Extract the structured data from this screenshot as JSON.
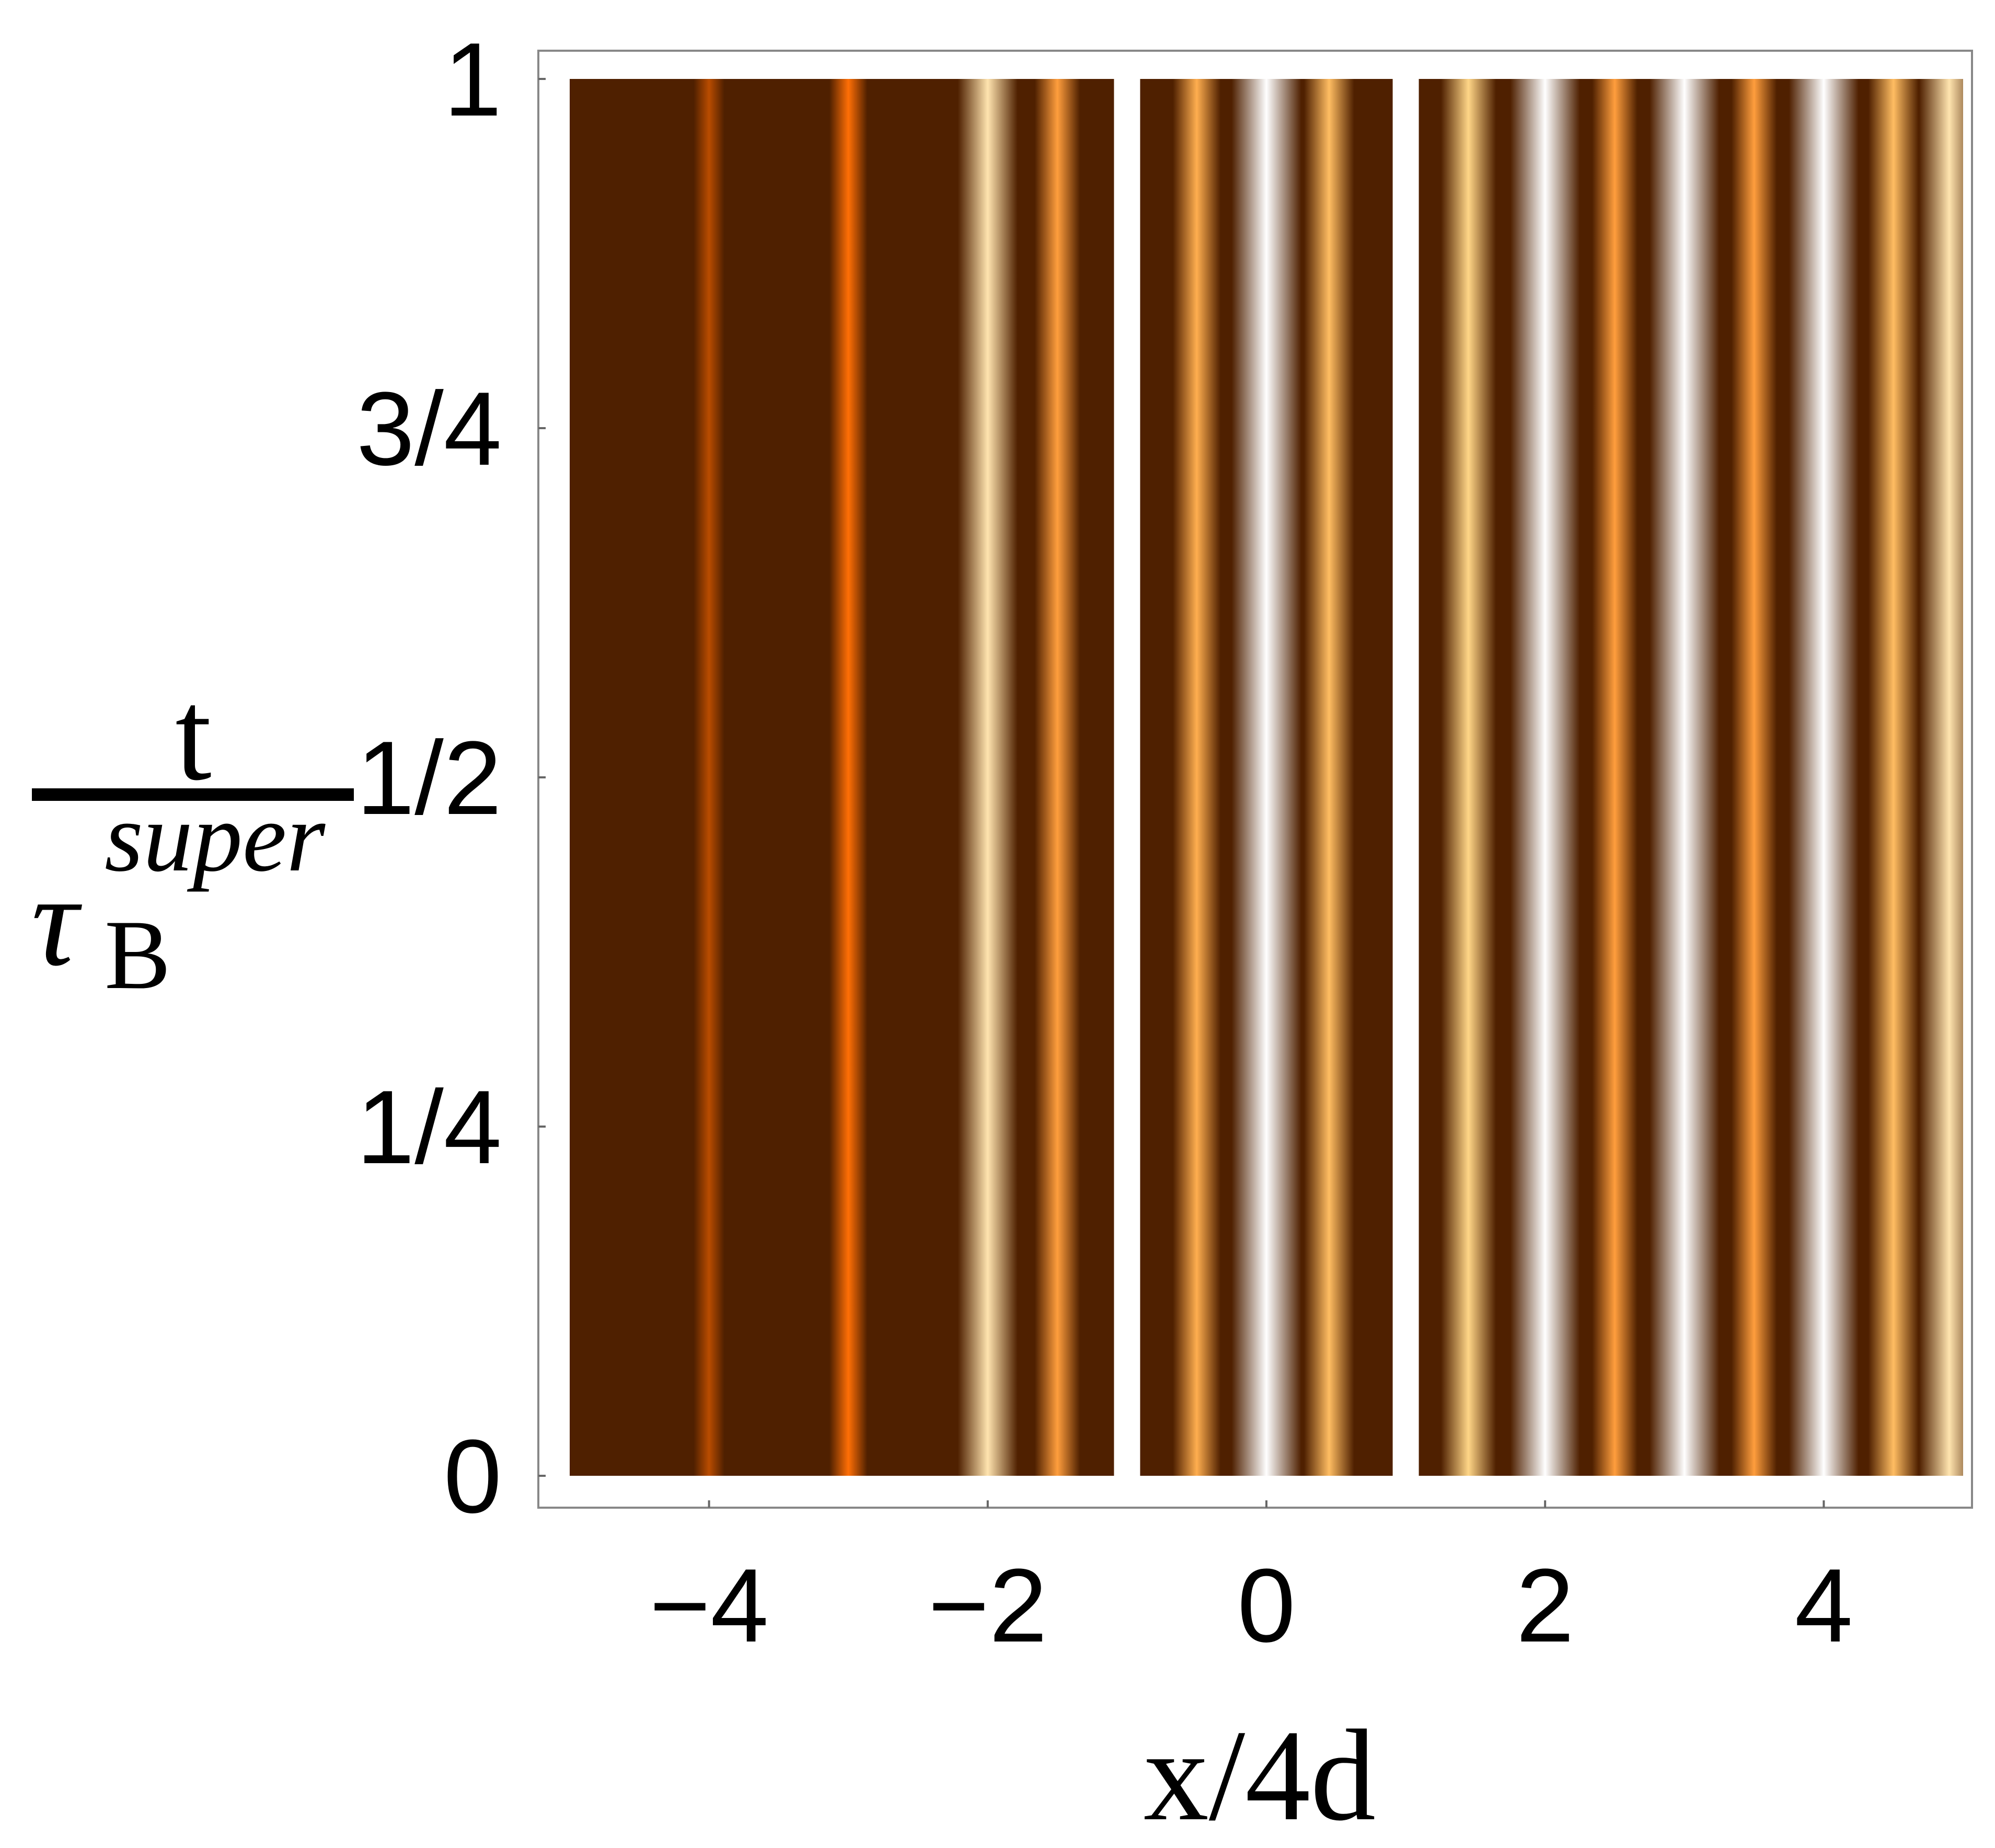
{
  "chart_data": {
    "type": "density",
    "xlabel": "x/4d",
    "ylabel": {
      "numerator": "t",
      "denominator": "τ",
      "subscript": "B",
      "superscript": "super"
    },
    "xlim": [
      -5,
      5
    ],
    "ylim": [
      0,
      1
    ],
    "xticks": [
      {
        "value": -4,
        "label": "−4"
      },
      {
        "value": -2,
        "label": "−2"
      },
      0,
      2,
      4
    ],
    "yticks": [
      0,
      {
        "value": 0.25,
        "label": "1/4"
      },
      {
        "value": 0.5,
        "label": "1/2"
      },
      {
        "value": 0.75,
        "label": "3/4"
      },
      1
    ],
    "colormap": [
      "#4f2000",
      "#ff6a00",
      "#ffd27a",
      "#ffffff"
    ],
    "stripes": {
      "x": [
        -4,
        -3,
        -2,
        -1.5,
        -0.5,
        0,
        0.45,
        1.45,
        2,
        2.5,
        3,
        3.5,
        4,
        4.5,
        4.9
      ],
      "values": [
        0.2,
        0.35,
        0.8,
        0.5,
        0.55,
        1,
        0.6,
        0.7,
        1,
        0.5,
        1,
        0.5,
        1,
        0.6,
        0.8
      ]
    },
    "gaps": [
      -1,
      1
    ]
  }
}
